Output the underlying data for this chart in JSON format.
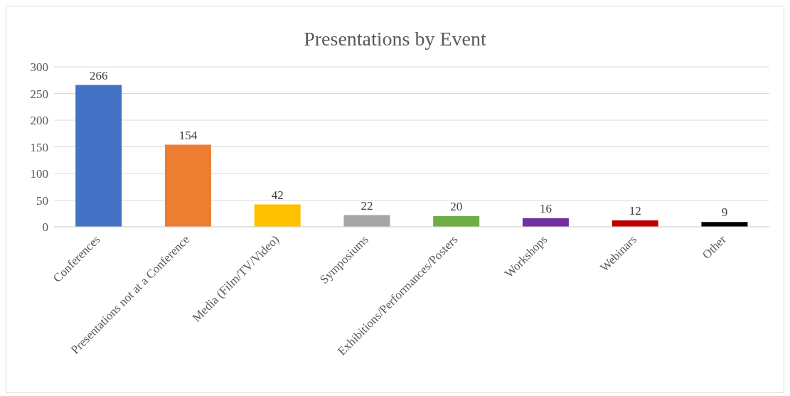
{
  "chart_data": {
    "type": "bar",
    "title": "Presentations by Event",
    "categories": [
      "Conferences",
      "Presentations not at a Conference",
      "Media (Film/TV/Video)",
      "Symposiums",
      "Exhibitions/Performances/Posters",
      "Workshops",
      "Webinars",
      "Other"
    ],
    "values": [
      266,
      154,
      42,
      22,
      20,
      16,
      12,
      9
    ],
    "colors": [
      "#4472c4",
      "#ed7d31",
      "#ffc000",
      "#a5a5a5",
      "#70ad47",
      "#7030a0",
      "#c00000",
      "#000000"
    ],
    "ylim": [
      0,
      300
    ],
    "yticks": [
      0,
      50,
      100,
      150,
      200,
      250,
      300
    ],
    "grid": "y",
    "data_labels": true
  }
}
